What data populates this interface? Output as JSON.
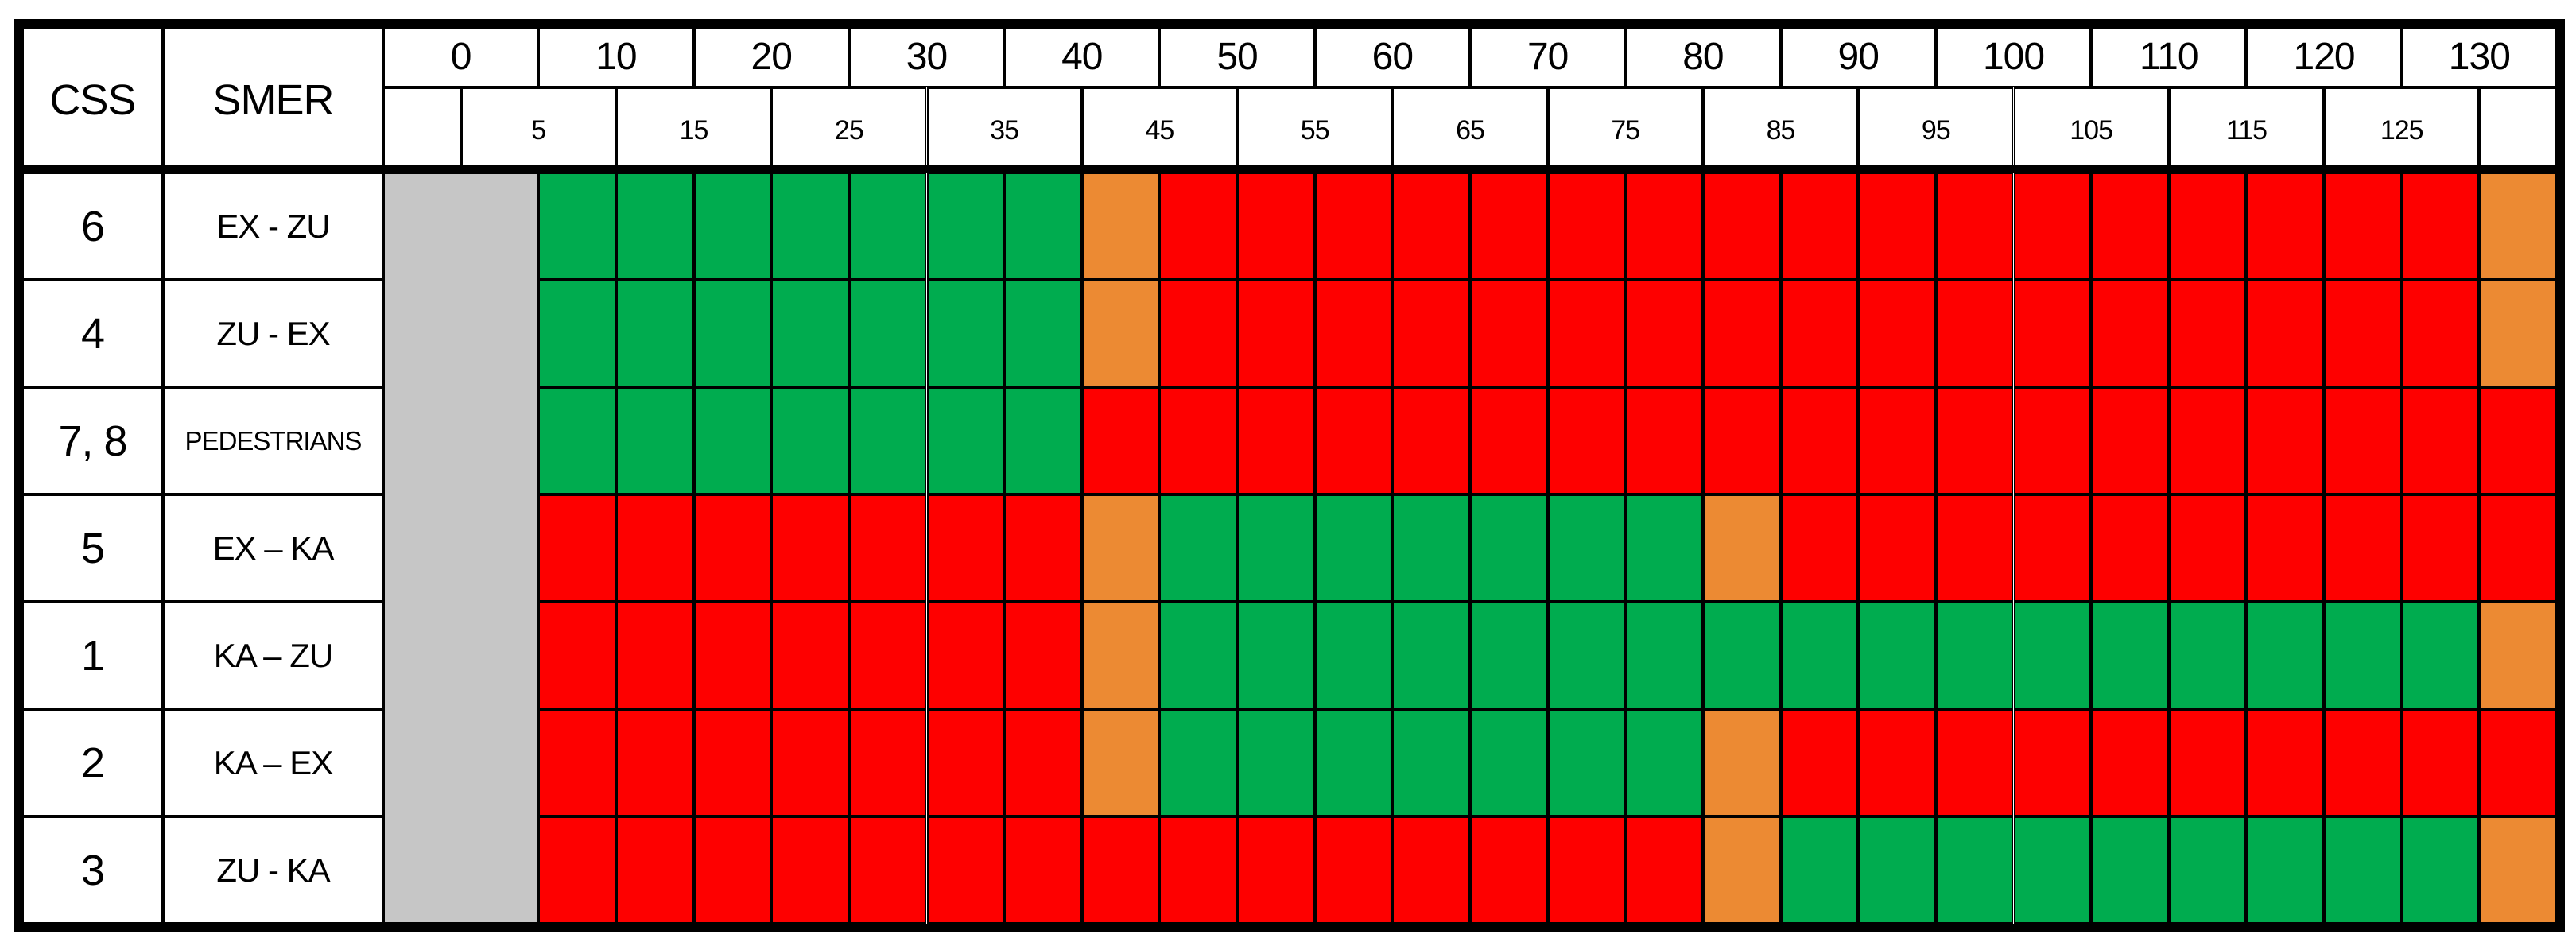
{
  "table": {
    "corner": {
      "css": "CSS",
      "smer": "SMER"
    }
  },
  "chart_data": {
    "type": "heatmap",
    "title": "",
    "description": "Traffic signal program diagram: state of each signal group (SMER direction) over cycle time in seconds",
    "x_axis": {
      "unit": "s",
      "range": [
        -5,
        135
      ],
      "cell_seconds": 5,
      "major_tick_labels": [
        "0",
        "10",
        "20",
        "30",
        "40",
        "50",
        "60",
        "70",
        "80",
        "90",
        "100",
        "110",
        "120",
        "130"
      ],
      "minor_tick_labels": [
        "5",
        "15",
        "25",
        "35",
        "45",
        "55",
        "65",
        "75",
        "85",
        "95",
        "105",
        "115",
        "125"
      ]
    },
    "pre_start_block": {
      "state": "gray",
      "from": -5,
      "to": 5,
      "merged_across_rows": true
    },
    "state_colors": {
      "green": "#00AC4F",
      "red": "#FE0000",
      "orange": "#EC8A33",
      "gray": "#C6C6C6"
    },
    "rows": [
      {
        "css": "6",
        "smer": "EX - ZU",
        "segments": [
          {
            "state": "green",
            "from": 5,
            "to": 40
          },
          {
            "state": "orange",
            "from": 40,
            "to": 45
          },
          {
            "state": "red",
            "from": 45,
            "to": 130
          },
          {
            "state": "orange",
            "from": 130,
            "to": 135
          }
        ]
      },
      {
        "css": "4",
        "smer": "ZU - EX",
        "segments": [
          {
            "state": "green",
            "from": 5,
            "to": 40
          },
          {
            "state": "orange",
            "from": 40,
            "to": 45
          },
          {
            "state": "red",
            "from": 45,
            "to": 130
          },
          {
            "state": "orange",
            "from": 130,
            "to": 135
          }
        ]
      },
      {
        "css": "7, 8",
        "smer": "PEDESTRIANS",
        "segments": [
          {
            "state": "green",
            "from": 5,
            "to": 40
          },
          {
            "state": "red",
            "from": 40,
            "to": 135
          }
        ]
      },
      {
        "css": "5",
        "smer": "EX – KA",
        "segments": [
          {
            "state": "red",
            "from": 5,
            "to": 40
          },
          {
            "state": "orange",
            "from": 40,
            "to": 45
          },
          {
            "state": "green",
            "from": 45,
            "to": 80
          },
          {
            "state": "orange",
            "from": 80,
            "to": 85
          },
          {
            "state": "red",
            "from": 85,
            "to": 135
          }
        ]
      },
      {
        "css": "1",
        "smer": "KA – ZU",
        "segments": [
          {
            "state": "red",
            "from": 5,
            "to": 40
          },
          {
            "state": "orange",
            "from": 40,
            "to": 45
          },
          {
            "state": "green",
            "from": 45,
            "to": 130
          },
          {
            "state": "orange",
            "from": 130,
            "to": 135
          }
        ]
      },
      {
        "css": "2",
        "smer": "KA – EX",
        "segments": [
          {
            "state": "red",
            "from": 5,
            "to": 40
          },
          {
            "state": "orange",
            "from": 40,
            "to": 45
          },
          {
            "state": "green",
            "from": 45,
            "to": 80
          },
          {
            "state": "orange",
            "from": 80,
            "to": 85
          },
          {
            "state": "red",
            "from": 85,
            "to": 135
          }
        ]
      },
      {
        "css": "3",
        "smer": "ZU - KA",
        "segments": [
          {
            "state": "red",
            "from": 5,
            "to": 80
          },
          {
            "state": "orange",
            "from": 80,
            "to": 85
          },
          {
            "state": "green",
            "from": 85,
            "to": 130
          },
          {
            "state": "orange",
            "from": 130,
            "to": 135
          }
        ]
      }
    ]
  }
}
